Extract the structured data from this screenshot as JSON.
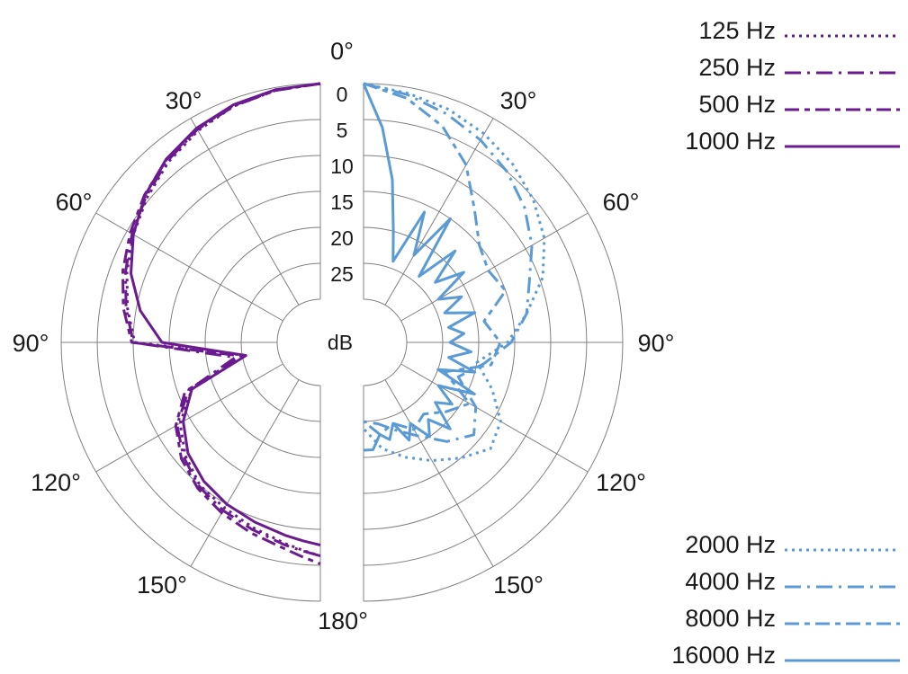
{
  "chart_data": {
    "type": "polar-line",
    "angle_unit": "deg",
    "radial_unit": "dB attenuation (0 at outer ring)",
    "rlim": [
      0,
      30
    ],
    "angle_ticks": [
      "0°",
      "30°",
      "60°",
      "90°",
      "120°",
      "150°",
      "180°",
      "30°",
      "60°",
      "90°",
      "120°",
      "150°"
    ],
    "radial_ticks": [
      "0",
      "5",
      "10",
      "15",
      "20",
      "25"
    ],
    "radial_ticks_values": [
      0,
      5,
      10,
      15,
      20,
      25
    ],
    "radial_axis_label": "dB",
    "grid": true,
    "colors": {
      "low": "#6a1b8f",
      "high": "#5b9bd5",
      "grid": "#808080"
    },
    "left_half": {
      "side": "left",
      "series": [
        {
          "name": "125 Hz",
          "style": "dotted",
          "angles": [
            0,
            10,
            20,
            30,
            40,
            50,
            60,
            70,
            80,
            90,
            100,
            110,
            120,
            130,
            140,
            150,
            160,
            170,
            175,
            180
          ],
          "values": [
            0,
            0.4,
            1,
            2,
            3.2,
            4.6,
            6,
            7.4,
            8.8,
            10.2,
            25.5,
            17,
            13.5,
            11.5,
            10,
            9.4,
            8.6,
            7.6,
            7,
            6.3
          ]
        },
        {
          "name": "250 Hz",
          "style": "dashdot",
          "angles": [
            0,
            10,
            20,
            30,
            40,
            50,
            60,
            70,
            80,
            90,
            100,
            110,
            120,
            130,
            140,
            150,
            160,
            170,
            175,
            180
          ],
          "values": [
            0,
            0.4,
            1,
            1.8,
            3,
            4.4,
            5.8,
            7.2,
            8.6,
            10,
            24,
            16.5,
            13,
            11.2,
            9.8,
            9,
            8.3,
            7.4,
            6.9,
            6.3
          ]
        },
        {
          "name": "500 Hz",
          "style": "dashed",
          "angles": [
            0,
            10,
            20,
            30,
            40,
            50,
            60,
            70,
            80,
            90,
            100,
            110,
            120,
            130,
            140,
            150,
            160,
            170,
            175,
            180
          ],
          "values": [
            0,
            0.4,
            0.9,
            1.7,
            2.8,
            4.1,
            5.5,
            6.8,
            8.2,
            9.8,
            25,
            16,
            12.8,
            10.8,
            9.5,
            8.6,
            7.8,
            6.9,
            6.1,
            5.2
          ]
        },
        {
          "name": "1000 Hz",
          "style": "solid",
          "angles": [
            0,
            10,
            20,
            30,
            40,
            50,
            60,
            70,
            80,
            90,
            100,
            110,
            120,
            130,
            140,
            150,
            160,
            170,
            175,
            180
          ],
          "values": [
            0,
            0.3,
            0.8,
            1.6,
            2.7,
            4.2,
            6,
            8,
            10.6,
            14,
            25.5,
            17,
            14,
            12,
            10.8,
            10,
            9.4,
            8.7,
            8.3,
            7.8
          ]
        }
      ]
    },
    "right_half": {
      "side": "right",
      "series": [
        {
          "name": "2000 Hz",
          "style": "dotted",
          "angles": [
            0,
            10,
            20,
            30,
            40,
            50,
            60,
            70,
            80,
            90,
            100,
            110,
            120,
            130,
            140,
            150,
            160,
            170,
            180
          ],
          "values": [
            0,
            0.8,
            1.5,
            2.5,
            3.7,
            5.2,
            7,
            9.5,
            13,
            16,
            20,
            17,
            14,
            13,
            15,
            17,
            19,
            21,
            24
          ]
        },
        {
          "name": "4000 Hz",
          "style": "dashdot",
          "angles": [
            0,
            10,
            20,
            30,
            40,
            50,
            60,
            70,
            80,
            90,
            100,
            110,
            120,
            130,
            140,
            150,
            160,
            170,
            180
          ],
          "values": [
            0,
            1,
            2.2,
            3.5,
            5,
            6.8,
            9,
            11.5,
            13,
            15.5,
            19,
            22,
            18,
            16,
            18,
            21,
            23,
            24.5,
            25
          ]
        },
        {
          "name": "8000 Hz",
          "style": "dashed",
          "angles": [
            0,
            10,
            20,
            30,
            40,
            50,
            60,
            70,
            80,
            90,
            100,
            110,
            120,
            130,
            140,
            150,
            160,
            170,
            180
          ],
          "values": [
            0,
            1.5,
            4,
            7.5,
            12,
            15,
            16,
            15,
            19,
            17,
            18,
            24,
            19,
            21,
            23,
            22,
            24,
            23,
            25
          ]
        },
        {
          "name": "16000 Hz",
          "style": "solid",
          "angles": [
            0,
            5,
            10,
            15,
            20,
            25,
            30,
            35,
            40,
            45,
            50,
            55,
            60,
            65,
            70,
            75,
            80,
            85,
            90,
            95,
            100,
            105,
            110,
            115,
            120,
            125,
            130,
            135,
            140,
            145,
            150,
            155,
            160,
            165,
            170,
            175,
            180
          ],
          "values": [
            0,
            6,
            13,
            20,
            24,
            16,
            22,
            15,
            24,
            18,
            23,
            19,
            24,
            21,
            24,
            20,
            24,
            22,
            24,
            21,
            24,
            20,
            25,
            19,
            24,
            21,
            23,
            19,
            22,
            20,
            23,
            21,
            24,
            22,
            23,
            21,
            21
          ]
        }
      ]
    }
  },
  "legend_top": [
    {
      "label": "125 Hz",
      "style": "dotted"
    },
    {
      "label": "250 Hz",
      "style": "dashdot"
    },
    {
      "label": "500 Hz",
      "style": "dashed"
    },
    {
      "label": "1000 Hz",
      "style": "solid"
    }
  ],
  "legend_bottom": [
    {
      "label": "2000 Hz",
      "style": "dotted"
    },
    {
      "label": "4000 Hz",
      "style": "dashdot"
    },
    {
      "label": "8000 Hz",
      "style": "dashed"
    },
    {
      "label": "16000 Hz",
      "style": "solid"
    }
  ]
}
